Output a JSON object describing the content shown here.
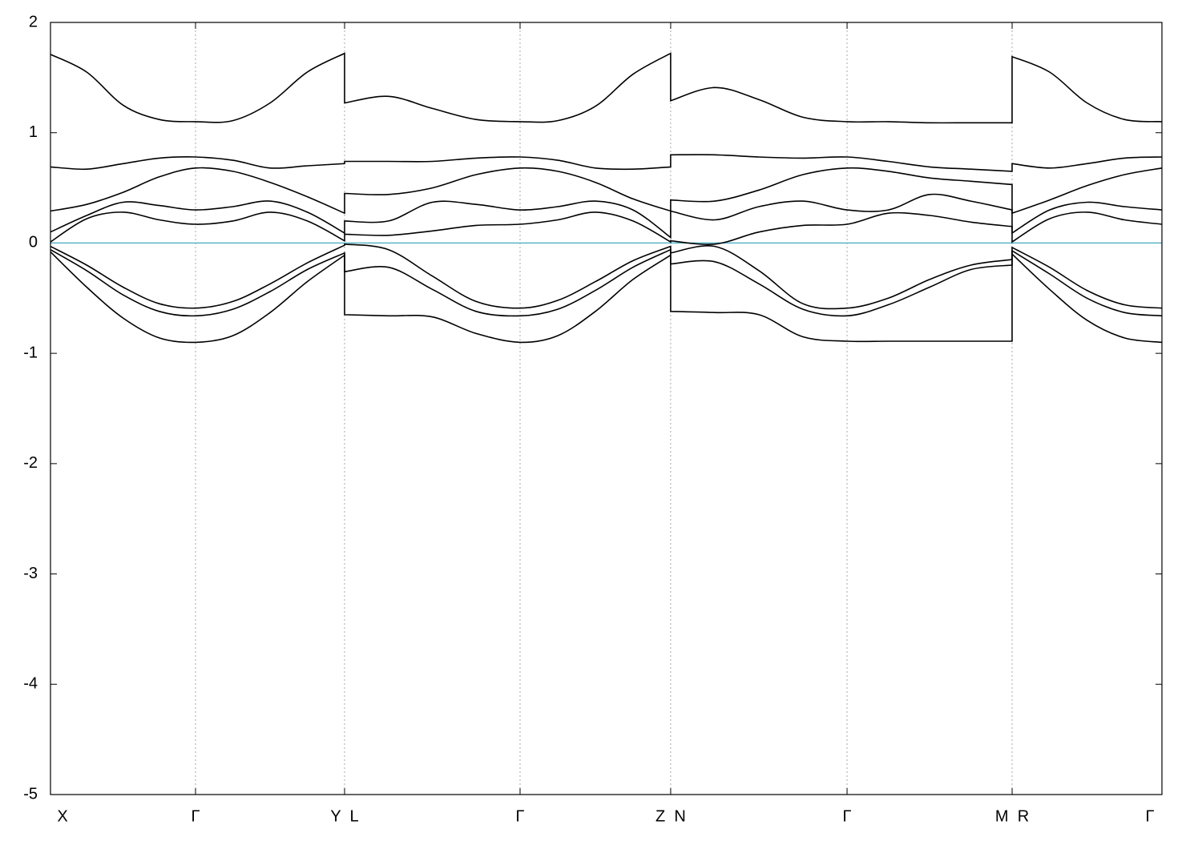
{
  "chart_data": {
    "type": "line",
    "x": [
      0,
      0.0326,
      0.0653,
      0.0979,
      0.1305,
      0.164,
      0.1976,
      0.2311,
      0.2646,
      0.2646,
      0.3041,
      0.3436,
      0.383,
      0.4225,
      0.4564,
      0.4903,
      0.5241,
      0.558,
      0.558,
      0.5977,
      0.6374,
      0.677,
      0.7167,
      0.7538,
      0.791,
      0.8281,
      0.8652,
      0.8652,
      0.8989,
      0.9326,
      0.9663,
      1
    ],
    "xlim": [
      0,
      1
    ],
    "xticks": [
      {
        "value": 0,
        "label": "X"
      },
      {
        "value": 0.1305,
        "label": "Γ"
      },
      {
        "value": 0.2646,
        "label": "Y  L"
      },
      {
        "value": 0.4225,
        "label": "Γ"
      },
      {
        "value": 0.558,
        "label": "Z  N"
      },
      {
        "value": 0.7167,
        "label": "Γ"
      },
      {
        "value": 0.8652,
        "label": "M  R"
      },
      {
        "value": 1,
        "label": "Γ"
      }
    ],
    "xgrid": true,
    "ylim": [
      -5,
      2
    ],
    "yticks": [
      -5,
      -4,
      -3,
      -2,
      -1,
      0,
      1,
      2
    ],
    "zero_line": {
      "value": 0,
      "color": "#5ab4c8"
    },
    "series": [
      {
        "color": "#000000",
        "values": [
          1.71,
          1.55,
          1.25,
          1.12,
          1.1,
          1.11,
          1.27,
          1.55,
          1.72,
          1.27,
          1.33,
          1.22,
          1.12,
          1.1,
          1.11,
          1.24,
          1.53,
          1.72,
          1.29,
          1.41,
          1.3,
          1.14,
          1.1,
          1.1,
          1.09,
          1.09,
          1.09,
          1.69,
          1.55,
          1.27,
          1.12,
          1.1
        ]
      },
      {
        "color": "#000000",
        "values": [
          0.69,
          0.67,
          0.72,
          0.77,
          0.78,
          0.75,
          0.68,
          0.7,
          0.72,
          0.74,
          0.74,
          0.74,
          0.77,
          0.78,
          0.75,
          0.68,
          0.67,
          0.69,
          0.8,
          0.8,
          0.78,
          0.77,
          0.78,
          0.74,
          0.69,
          0.67,
          0.65,
          0.72,
          0.68,
          0.72,
          0.77,
          0.78
        ]
      },
      {
        "color": "#000000",
        "values": [
          0.29,
          0.35,
          0.46,
          0.6,
          0.68,
          0.65,
          0.55,
          0.42,
          0.27,
          0.45,
          0.44,
          0.5,
          0.62,
          0.68,
          0.65,
          0.55,
          0.4,
          0.29,
          0.39,
          0.38,
          0.48,
          0.62,
          0.68,
          0.65,
          0.59,
          0.56,
          0.53,
          0.27,
          0.39,
          0.52,
          0.62,
          0.68
        ]
      },
      {
        "color": "#000000",
        "values": [
          0.1,
          0.25,
          0.37,
          0.34,
          0.3,
          0.33,
          0.38,
          0.28,
          0.09,
          0.2,
          0.2,
          0.37,
          0.35,
          0.3,
          0.33,
          0.38,
          0.3,
          0.05,
          0.29,
          0.21,
          0.33,
          0.38,
          0.3,
          0.3,
          0.44,
          0.38,
          0.3,
          0.09,
          0.3,
          0.37,
          0.33,
          0.3
        ]
      },
      {
        "color": "#000000",
        "values": [
          0.01,
          0.22,
          0.28,
          0.21,
          0.17,
          0.2,
          0.28,
          0.2,
          0.02,
          0.08,
          0.07,
          0.11,
          0.16,
          0.17,
          0.21,
          0.28,
          0.2,
          0.01,
          0.02,
          -0.01,
          0.1,
          0.16,
          0.17,
          0.27,
          0.25,
          0.19,
          0.15,
          0.01,
          0.22,
          0.28,
          0.21,
          0.17
        ]
      },
      {
        "color": "#000000",
        "values": [
          -0.03,
          -0.2,
          -0.4,
          -0.55,
          -0.59,
          -0.53,
          -0.37,
          -0.18,
          -0.02,
          -0.01,
          -0.06,
          -0.3,
          -0.53,
          -0.59,
          -0.52,
          -0.35,
          -0.16,
          -0.03,
          -0.09,
          -0.03,
          -0.25,
          -0.55,
          -0.59,
          -0.5,
          -0.33,
          -0.2,
          -0.15,
          -0.04,
          -0.22,
          -0.43,
          -0.56,
          -0.59
        ]
      },
      {
        "color": "#000000",
        "values": [
          -0.06,
          -0.25,
          -0.47,
          -0.62,
          -0.66,
          -0.6,
          -0.44,
          -0.24,
          -0.09,
          -0.26,
          -0.22,
          -0.42,
          -0.62,
          -0.66,
          -0.6,
          -0.43,
          -0.22,
          -0.06,
          -0.19,
          -0.17,
          -0.37,
          -0.6,
          -0.66,
          -0.56,
          -0.4,
          -0.24,
          -0.2,
          -0.07,
          -0.28,
          -0.5,
          -0.63,
          -0.66
        ]
      },
      {
        "color": "#000000",
        "values": [
          -0.08,
          -0.4,
          -0.68,
          -0.86,
          -0.9,
          -0.84,
          -0.63,
          -0.35,
          -0.11,
          -0.65,
          -0.66,
          -0.67,
          -0.82,
          -0.9,
          -0.84,
          -0.62,
          -0.33,
          -0.11,
          -0.62,
          -0.63,
          -0.65,
          -0.85,
          -0.89,
          -0.89,
          -0.89,
          -0.89,
          -0.89,
          -0.1,
          -0.42,
          -0.7,
          -0.86,
          -0.9
        ]
      }
    ]
  }
}
